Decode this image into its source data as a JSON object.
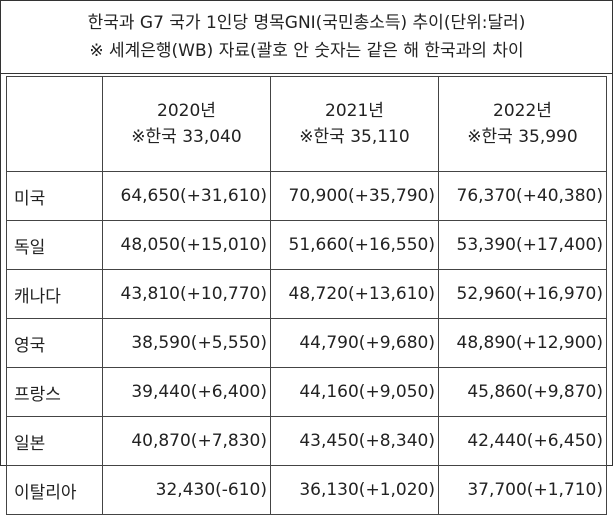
{
  "title": {
    "line1": "한국과 G7 국가 1인당 명목GNI(국민총소득) 추이(단위:달러)",
    "line2": "※ 세계은행(WB) 자료(괄호 안 숫자는 같은 해 한국과의 차이"
  },
  "table": {
    "columns": [
      {
        "year": "2020년",
        "korea": "※한국 33,040"
      },
      {
        "year": "2021년",
        "korea": "※한국 35,110"
      },
      {
        "year": "2022년",
        "korea": "※한국 35,990"
      }
    ],
    "rows": [
      {
        "country": "미국",
        "values": [
          "64,650(+31,610)",
          "70,900(+35,790)",
          "76,370(+40,380)"
        ]
      },
      {
        "country": "독일",
        "values": [
          "48,050(+15,010)",
          "51,660(+16,550)",
          "53,390(+17,400)"
        ]
      },
      {
        "country": "캐나다",
        "values": [
          "43,810(+10,770)",
          "48,720(+13,610)",
          "52,960(+16,970)"
        ]
      },
      {
        "country": "영국",
        "values": [
          "38,590(+5,550)",
          "44,790(+9,680)",
          "48,890(+12,900)"
        ]
      },
      {
        "country": "프랑스",
        "values": [
          "39,440(+6,400)",
          "44,160(+9,050)",
          "45,860(+9,870)"
        ]
      },
      {
        "country": "일본",
        "values": [
          "40,870(+7,830)",
          "43,450(+8,340)",
          "42,440(+6,450)"
        ]
      },
      {
        "country": "이탈리아",
        "values": [
          "32,430(-610)",
          "36,130(+1,020)",
          "37,700(+1,710)"
        ]
      }
    ]
  }
}
